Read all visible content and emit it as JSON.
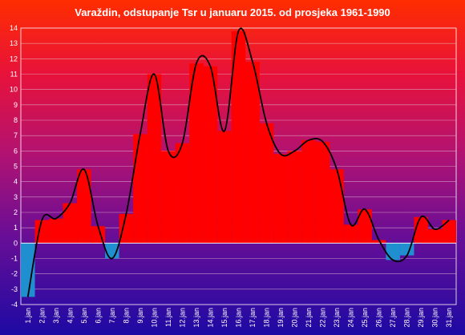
{
  "chart_data": {
    "type": "bar",
    "title": "Varaždin, odstupanje Tsr u januaru 2015. od prosjeka 1961-1990",
    "xlabel": "",
    "ylabel": "",
    "ylim": [
      -4,
      14
    ],
    "y_ticks": [
      -4,
      -3,
      -2,
      -1,
      0,
      1,
      2,
      3,
      4,
      5,
      6,
      7,
      8,
      9,
      10,
      11,
      12,
      13,
      14
    ],
    "grid": true,
    "legend": "none",
    "categories": [
      "1.jan",
      "2.jan",
      "3.jan",
      "4.jan",
      "5.jan",
      "6.jan",
      "7.jan",
      "8.jan",
      "9.jan",
      "10.jan",
      "11.jan",
      "12.jan",
      "13.jan",
      "14.jan",
      "15.jan",
      "16.jan",
      "17.jan",
      "18.jan",
      "19.jan",
      "20.jan",
      "21.jan",
      "22.jan",
      "23.jan",
      "24.jan",
      "25.jan",
      "26.jan",
      "27.jan",
      "28.jan",
      "29.jan",
      "30.jan",
      "31.jan"
    ],
    "series": [
      {
        "values": [
          -3.5,
          1.5,
          1.6,
          2.6,
          4.8,
          1.1,
          -1.0,
          1.9,
          7.1,
          11.0,
          6.0,
          6.5,
          11.7,
          11.5,
          7.3,
          13.8,
          11.8,
          7.8,
          5.8,
          6.0,
          6.7,
          6.6,
          4.8,
          1.2,
          2.2,
          0.2,
          -1.1,
          -0.8,
          1.7,
          0.9,
          1.5
        ]
      }
    ],
    "colors": {
      "positive_bar": "#ff0000",
      "negative_bar": "#1f8fd0",
      "trend_line": "#000000",
      "background_top": "#ff2a00",
      "background_bottom": "#1a0aa0"
    }
  }
}
